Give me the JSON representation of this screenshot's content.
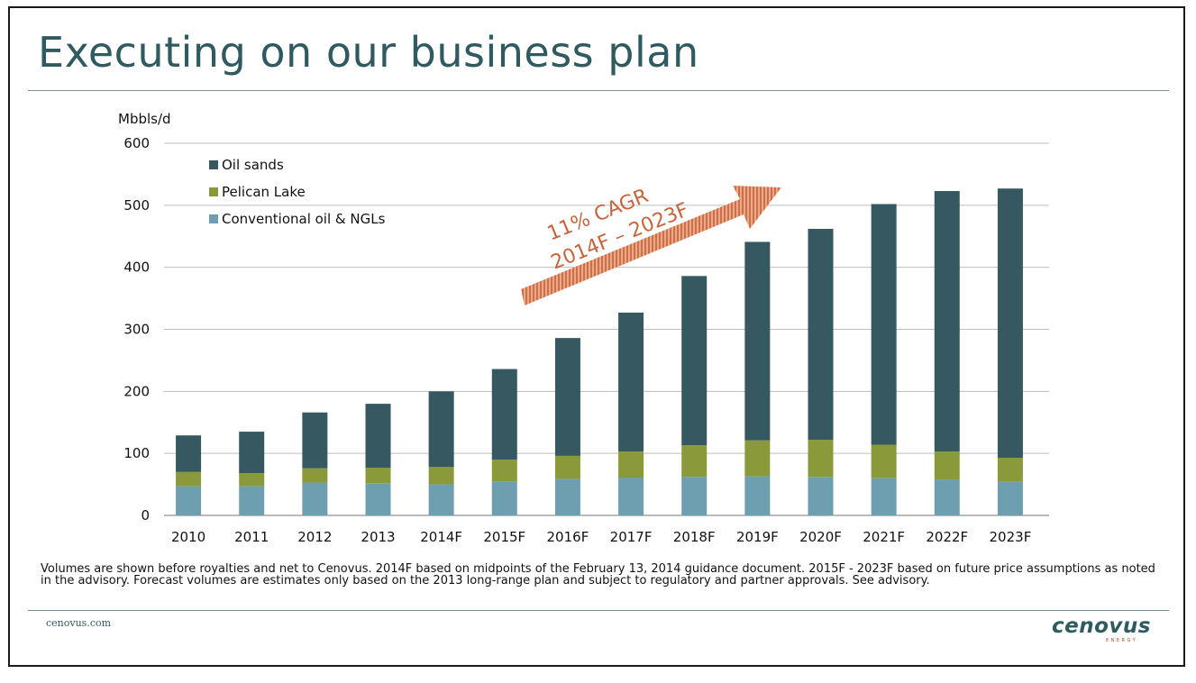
{
  "slide": {
    "title": "Executing on our business plan",
    "footnote": "Volumes are shown before royalties and net to Cenovus. 2014F based on midpoints of the February 13, 2014 guidance document. 2015F - 2023F based on future price assumptions as noted in the advisory. Forecast volumes are estimates only based on the 2013 long-range plan and subject to regulatory and partner approvals. See advisory.",
    "website": "cenovus.com",
    "logo": {
      "word": "cenovus",
      "sub": "ENERGY",
      "icon": "cenovus-logo"
    }
  },
  "chart_data": {
    "type": "bar",
    "stacked": true,
    "title": "",
    "xlabel": "",
    "ylabel": "Mbbls/d",
    "ylim": [
      0,
      600
    ],
    "yticks": [
      0,
      100,
      200,
      300,
      400,
      500,
      600
    ],
    "grid": true,
    "legend_position": "top-left",
    "categories": [
      "2010",
      "2011",
      "2012",
      "2013",
      "2014F",
      "2015F",
      "2016F",
      "2017F",
      "2018F",
      "2019F",
      "2020F",
      "2021F",
      "2022F",
      "2023F"
    ],
    "series": [
      {
        "name": "Conventional oil & NGLs",
        "color": "#6e9fb0",
        "values": [
          47,
          47,
          53,
          52,
          50,
          55,
          59,
          61,
          62,
          63,
          62,
          60,
          58,
          54
        ]
      },
      {
        "name": "Pelican Lake",
        "color": "#8a9a3a",
        "values": [
          23,
          21,
          23,
          25,
          28,
          35,
          37,
          42,
          51,
          58,
          60,
          54,
          45,
          39
        ]
      },
      {
        "name": "Oil sands",
        "color": "#365860",
        "values": [
          59,
          67,
          90,
          103,
          122,
          146,
          190,
          224,
          273,
          320,
          340,
          388,
          420,
          434
        ]
      }
    ],
    "legend_order": [
      "Oil sands",
      "Pelican Lake",
      "Conventional oil & NGLs"
    ],
    "annotation": {
      "lines": [
        "11% CAGR",
        "2014F – 2023F"
      ],
      "color": "#d0704a"
    }
  }
}
